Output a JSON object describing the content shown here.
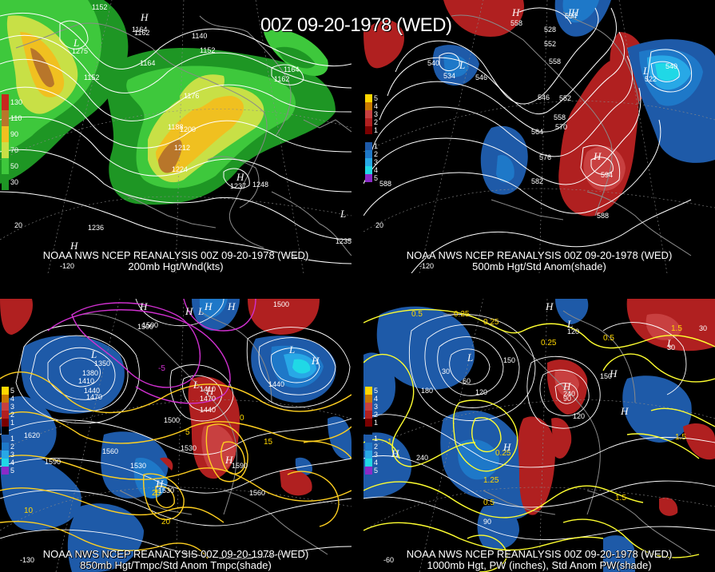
{
  "title": "00Z 09-20-1978 (WED)",
  "panels": {
    "p200": {
      "caption_line1": "NOAA NWS NCEP REANALYSIS 00Z 09-20-1978 (WED)",
      "caption_line2": "200mb Hgt/Wnd(kts)",
      "legend": [
        {
          "label": "130",
          "color": "#c8281e"
        },
        {
          "label": "110",
          "color": "#b8762a"
        },
        {
          "label": "90",
          "color": "#f0c020"
        },
        {
          "label": "70",
          "color": "#c8e046"
        },
        {
          "label": "50",
          "color": "#3ec83c"
        },
        {
          "label": "30",
          "color": "#1e9624"
        }
      ],
      "contour_labels": [
        "1152",
        "1164",
        "1140",
        "1152",
        "1164",
        "1152",
        "1164",
        "1176",
        "1188",
        "1200",
        "1212",
        "1224",
        "1236",
        "1248",
        "1237",
        "1275",
        "1162",
        "1162",
        "1235",
        "20",
        "-120"
      ],
      "highs_lows": [
        "H",
        "H",
        "H",
        "L",
        "L"
      ]
    },
    "p500": {
      "caption_line1": "NOAA NWS NCEP REANALYSIS 00Z 09-20-1978 (WED)",
      "caption_line2": "500mb Hgt/Std Anom(shade)",
      "legend": [
        {
          "label": "5",
          "color": "#ffd700"
        },
        {
          "label": "4",
          "color": "#c87800"
        },
        {
          "label": "3",
          "color": "#c84040"
        },
        {
          "label": "2",
          "color": "#b02020"
        },
        {
          "label": "1",
          "color": "#7a0000"
        },
        {
          "label": "",
          "color": "#000000"
        },
        {
          "label": "1",
          "color": "#1e5aa8"
        },
        {
          "label": "2",
          "color": "#1e78c8"
        },
        {
          "label": "3",
          "color": "#28a8e6"
        },
        {
          "label": "4",
          "color": "#20d8e6"
        },
        {
          "label": "5",
          "color": "#8a2ac8"
        }
      ],
      "contour_labels": [
        "540",
        "534",
        "546",
        "552",
        "558",
        "546",
        "552",
        "558",
        "564",
        "570",
        "576",
        "582",
        "588",
        "588",
        "594",
        "558",
        "528",
        "534",
        "540",
        "522",
        "20",
        "-120"
      ],
      "highs_lows": [
        "H",
        "H",
        "L",
        "L",
        "L",
        "H"
      ]
    },
    "p850": {
      "caption_line1": "NOAA NWS NCEP REANALYSIS 00Z 09-20-1978 (WED)",
      "caption_line2": "850mb Hgt/Tmpc/Std Anom Tmpc(shade)",
      "legend": [
        {
          "label": "5",
          "color": "#ffd700"
        },
        {
          "label": "4",
          "color": "#c87800"
        },
        {
          "label": "3",
          "color": "#c84040"
        },
        {
          "label": "2",
          "color": "#b02020"
        },
        {
          "label": "1",
          "color": "#7a0000"
        },
        {
          "label": "",
          "color": "#000000"
        },
        {
          "label": "1",
          "color": "#1e5aa8"
        },
        {
          "label": "2",
          "color": "#1e78c8"
        },
        {
          "label": "3",
          "color": "#28a8e6"
        },
        {
          "label": "4",
          "color": "#20d8e6"
        },
        {
          "label": "5",
          "color": "#8a2ac8"
        }
      ],
      "contour_labels": [
        "1500",
        "1500",
        "1440",
        "1410",
        "1380",
        "1350",
        "1620",
        "1590",
        "1560",
        "1530",
        "1500",
        "1530",
        "1470",
        "1440",
        "1410",
        "1440",
        "1470",
        "1530",
        "1560",
        "1590",
        "1500",
        "-5",
        "0",
        "5",
        "10",
        "15",
        "20",
        "25",
        "-130"
      ],
      "highs_lows": [
        "H",
        "H",
        "H",
        "L",
        "L",
        "L",
        "L",
        "H",
        "H",
        "H",
        "H",
        "H"
      ]
    },
    "p1000": {
      "caption_line1": "NOAA NWS NCEP REANALYSIS 00Z 09-20-1978 (WED)",
      "caption_line2": "1000mb Hgt, PW (inches), Std Anom PW(shade)",
      "legend": [
        {
          "label": "5",
          "color": "#ffd700"
        },
        {
          "label": "4",
          "color": "#c87800"
        },
        {
          "label": "3",
          "color": "#c84040"
        },
        {
          "label": "2",
          "color": "#b02020"
        },
        {
          "label": "1",
          "color": "#7a0000"
        },
        {
          "label": "",
          "color": "#000000"
        },
        {
          "label": "1",
          "color": "#1e5aa8"
        },
        {
          "label": "2",
          "color": "#1e78c8"
        },
        {
          "label": "3",
          "color": "#28a8e6"
        },
        {
          "label": "4",
          "color": "#20d8e6"
        },
        {
          "label": "5",
          "color": "#8a2ac8"
        }
      ],
      "contour_labels": [
        "0.5",
        "0.25",
        "0.25",
        "0.25",
        "0.5",
        "1.5",
        "1.5",
        "1.5",
        "1",
        "1.25",
        "0.25",
        "0.5",
        "180",
        "240",
        "150",
        "120",
        "60",
        "90",
        "120",
        "150",
        "240",
        "30",
        "30",
        "120",
        "30",
        "90",
        "-60"
      ],
      "highs_lows": [
        "H",
        "H",
        "H",
        "L",
        "L",
        "L",
        "H",
        "H",
        "H"
      ]
    }
  }
}
